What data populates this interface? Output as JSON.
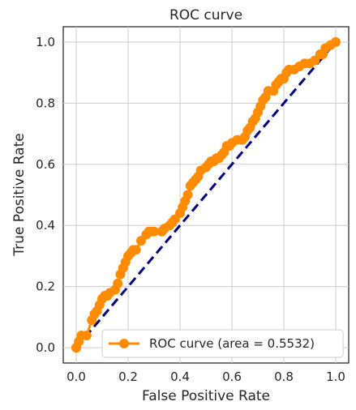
{
  "chart_data": {
    "type": "line",
    "title": "ROC curve",
    "xlabel": "False Positive Rate",
    "ylabel": "True Positive Rate",
    "xlim": [
      -0.05,
      1.05
    ],
    "ylim": [
      -0.05,
      1.05
    ],
    "xticks": [
      0.0,
      0.2,
      0.4,
      0.6,
      0.8,
      1.0
    ],
    "xtick_labels": [
      "0.0",
      "0.2",
      "0.4",
      "0.6",
      "0.8",
      "1.0"
    ],
    "yticks": [
      0.0,
      0.2,
      0.4,
      0.6,
      0.8,
      1.0
    ],
    "ytick_labels": [
      "0.0",
      "0.2",
      "0.4",
      "0.6",
      "0.8",
      "1.0"
    ],
    "grid": true,
    "legend_position": "lower right",
    "series": [
      {
        "name": "ROC curve (area = 0.5532)",
        "color": "#ff8c00",
        "marker": "circle",
        "x": [
          0.0,
          0.0,
          0.01,
          0.02,
          0.04,
          0.06,
          0.07,
          0.08,
          0.09,
          0.1,
          0.11,
          0.12,
          0.13,
          0.15,
          0.16,
          0.17,
          0.18,
          0.19,
          0.2,
          0.21,
          0.22,
          0.23,
          0.25,
          0.27,
          0.28,
          0.29,
          0.3,
          0.33,
          0.34,
          0.36,
          0.37,
          0.38,
          0.4,
          0.41,
          0.42,
          0.43,
          0.44,
          0.45,
          0.46,
          0.47,
          0.48,
          0.5,
          0.51,
          0.52,
          0.53,
          0.54,
          0.55,
          0.56,
          0.57,
          0.58,
          0.59,
          0.6,
          0.62,
          0.64,
          0.65,
          0.66,
          0.67,
          0.68,
          0.69,
          0.7,
          0.71,
          0.72,
          0.73,
          0.74,
          0.76,
          0.77,
          0.78,
          0.79,
          0.8,
          0.81,
          0.82,
          0.84,
          0.86,
          0.88,
          0.9,
          0.92,
          0.94,
          0.95,
          0.96,
          0.98,
          1.0
        ],
        "y": [
          0.0,
          0.0,
          0.02,
          0.04,
          0.04,
          0.09,
          0.11,
          0.12,
          0.14,
          0.16,
          0.17,
          0.17,
          0.18,
          0.19,
          0.21,
          0.24,
          0.26,
          0.28,
          0.3,
          0.31,
          0.32,
          0.32,
          0.35,
          0.37,
          0.38,
          0.38,
          0.38,
          0.38,
          0.39,
          0.4,
          0.41,
          0.42,
          0.44,
          0.46,
          0.48,
          0.5,
          0.53,
          0.54,
          0.55,
          0.56,
          0.58,
          0.59,
          0.6,
          0.61,
          0.61,
          0.62,
          0.62,
          0.63,
          0.64,
          0.66,
          0.66,
          0.67,
          0.68,
          0.68,
          0.69,
          0.71,
          0.72,
          0.74,
          0.75,
          0.77,
          0.79,
          0.81,
          0.82,
          0.84,
          0.84,
          0.86,
          0.87,
          0.88,
          0.88,
          0.9,
          0.91,
          0.91,
          0.92,
          0.93,
          0.93,
          0.94,
          0.96,
          0.96,
          0.98,
          0.99,
          1.0
        ]
      },
      {
        "name": "",
        "color": "#000080",
        "line_style": "dashed",
        "x": [
          0.0,
          1.0
        ],
        "y": [
          0.0,
          1.0
        ]
      }
    ]
  }
}
